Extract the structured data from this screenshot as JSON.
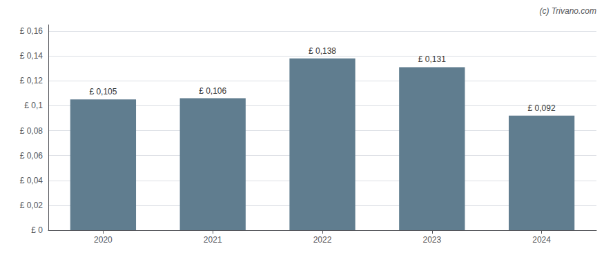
{
  "chart_data": {
    "type": "bar",
    "categories": [
      "2020",
      "2021",
      "2022",
      "2023",
      "2024"
    ],
    "values": [
      0.105,
      0.106,
      0.138,
      0.131,
      0.092
    ],
    "value_labels": [
      "£ 0,105",
      "£ 0,106",
      "£ 0,138",
      "£ 0,131",
      "£ 0,092"
    ],
    "data_labels": true,
    "color": "#607d8f",
    "ylim": [
      0,
      0.165
    ],
    "yticks": [
      {
        "value": 0,
        "label": "£ 0"
      },
      {
        "value": 0.02,
        "label": "£ 0,02"
      },
      {
        "value": 0.04,
        "label": "£ 0,04"
      },
      {
        "value": 0.06,
        "label": "£ 0,06"
      },
      {
        "value": 0.08,
        "label": "£ 0,08"
      },
      {
        "value": 0.1,
        "label": "£ 0,1"
      },
      {
        "value": 0.12,
        "label": "£ 0,12"
      },
      {
        "value": 0.14,
        "label": "£ 0,14"
      },
      {
        "value": 0.16,
        "label": "£ 0,16"
      }
    ],
    "grid": true,
    "annotations": [
      "(c) Trivano.com"
    ]
  }
}
